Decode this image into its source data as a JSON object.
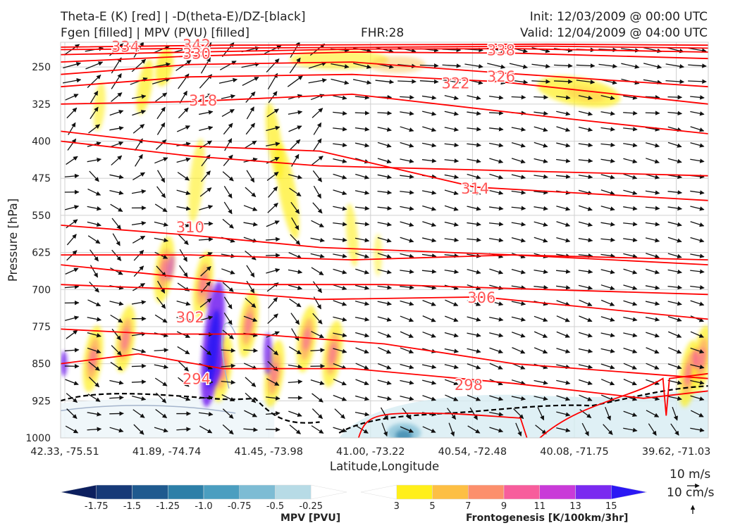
{
  "header": {
    "title_left_1": "Theta-E (K) [red] | -D(theta-E)/DZ-[black]",
    "title_left_2": "Fgen [filled] | MPV (PVU) [filled]",
    "fhr": "FHR:28",
    "init": "Init: 12/03/2009 @ 00:00 UTC",
    "valid": "Valid: 12/04/2009 @ 04:00 UTC"
  },
  "chart_data": {
    "type": "cross-section",
    "xlabel": "Latitude,Longitude",
    "ylabel": "Pressure [hPa]",
    "x_ticks": [
      "42.33, -75.51",
      "41.89, -74.74",
      "41.45, -73.98",
      "41.00, -73.22",
      "40.54, -72.48",
      "40.08, -71.75",
      "39.62, -71.03"
    ],
    "y_ticks": [
      250,
      325,
      400,
      475,
      550,
      625,
      700,
      775,
      850,
      925,
      1000
    ],
    "ylim": [
      1000,
      200
    ],
    "grid": true,
    "theta_e_contour_labels": [
      {
        "value": 334,
        "pos": [
          0.1,
          208
        ]
      },
      {
        "value": 342,
        "pos": [
          0.21,
          204
        ]
      },
      {
        "value": 330,
        "pos": [
          0.21,
          222
        ]
      },
      {
        "value": 338,
        "pos": [
          0.68,
          215
        ]
      },
      {
        "value": 326,
        "pos": [
          0.68,
          268
        ]
      },
      {
        "value": 322,
        "pos": [
          0.61,
          282
        ]
      },
      {
        "value": 318,
        "pos": [
          0.22,
          317
        ]
      },
      {
        "value": 314,
        "pos": [
          0.64,
          495
        ]
      },
      {
        "value": 310,
        "pos": [
          0.2,
          573
        ]
      },
      {
        "value": 306,
        "pos": [
          0.65,
          715
        ]
      },
      {
        "value": 302,
        "pos": [
          0.2,
          755
        ]
      },
      {
        "value": 298,
        "pos": [
          0.63,
          892
        ]
      },
      {
        "value": 294,
        "pos": [
          0.21,
          880
        ]
      }
    ],
    "mpv_colorbar": {
      "label": "MPV [PVU]",
      "ticks": [
        "-1.75",
        "-1.5",
        "-1.25",
        "-1.0",
        "-0.75",
        "-0.5",
        "-0.25"
      ],
      "colors": [
        "#0c1f5e",
        "#173a78",
        "#1f5a8f",
        "#2d7fa8",
        "#4b9ec0",
        "#7dbcd4",
        "#b7dbe6",
        "#ffffff"
      ]
    },
    "fgen_colorbar": {
      "label": "Frontogenesis [K/100km/3hr]",
      "ticks": [
        "3",
        "5",
        "7",
        "9",
        "11",
        "13",
        "15"
      ],
      "colors": [
        "#ffffff",
        "#ffef1a",
        "#fdbf44",
        "#fc8f6c",
        "#f75d9c",
        "#c93bd8",
        "#7a2af0",
        "#2b18f4"
      ]
    },
    "wind_key": {
      "horizontal": "10 m/s",
      "vertical": "10 cm/s"
    },
    "colors": {
      "theta_e": "#ff0000",
      "stability": "#000000",
      "grid": "#d0d0d0",
      "label": "#ff5555"
    }
  }
}
